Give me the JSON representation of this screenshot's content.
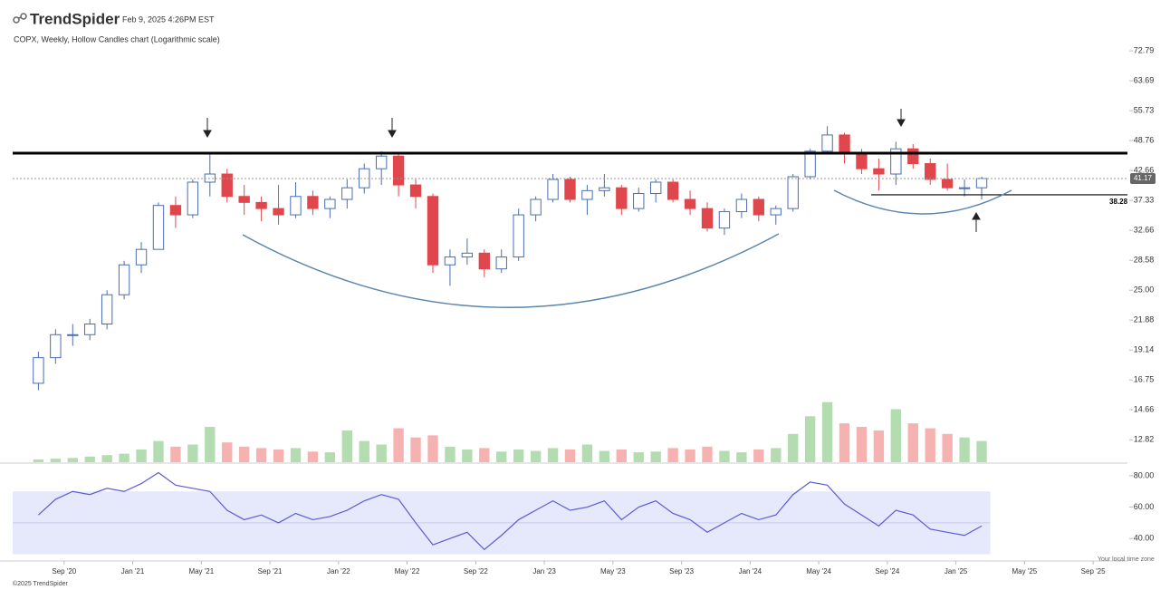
{
  "header": {
    "brand": "TrendSpider",
    "timestamp": "Feb 9, 2025 4:26PM EST"
  },
  "chart_data": {
    "type": "candlestick",
    "title": "COPX, Weekly, Hollow Candles chart (Logarithmic scale)",
    "x": [
      "2020-07",
      "2020-08",
      "2020-09",
      "2020-10",
      "2020-11",
      "2020-12",
      "2021-01",
      "2021-02",
      "2021-03",
      "2021-04",
      "2021-05",
      "2021-06",
      "2021-07",
      "2021-08",
      "2021-09",
      "2021-10",
      "2021-11",
      "2021-12",
      "2022-01",
      "2022-02",
      "2022-03",
      "2022-04",
      "2022-05",
      "2022-06",
      "2022-07",
      "2022-08",
      "2022-09",
      "2022-10",
      "2022-11",
      "2022-12",
      "2023-01",
      "2023-02",
      "2023-03",
      "2023-04",
      "2023-05",
      "2023-06",
      "2023-07",
      "2023-08",
      "2023-09",
      "2023-10",
      "2023-11",
      "2023-12",
      "2024-01",
      "2024-02",
      "2024-03",
      "2024-04",
      "2024-05",
      "2024-06",
      "2024-07",
      "2024-08",
      "2024-09",
      "2024-10",
      "2024-11",
      "2024-12",
      "2025-01",
      "2025-02"
    ],
    "open": [
      16.5,
      18.5,
      20.5,
      20.5,
      21.5,
      24.5,
      28,
      30,
      36.5,
      35,
      40.5,
      42,
      38,
      37,
      36,
      35,
      38,
      36,
      37.5,
      39.5,
      43,
      45.5,
      40,
      38,
      28,
      29,
      29.5,
      27.5,
      29,
      35,
      37.5,
      41,
      37.5,
      39,
      39.5,
      36,
      38.5,
      40.5,
      37.5,
      36,
      33,
      35.5,
      37.5,
      35,
      36,
      41.5,
      46.5,
      50,
      46,
      43,
      42,
      47,
      44,
      41,
      39.5,
      39.5
    ],
    "high": [
      19,
      21,
      21.5,
      22,
      25,
      28.5,
      31,
      37,
      38,
      41,
      46,
      43,
      40,
      38,
      40,
      40.5,
      39,
      38,
      41,
      44,
      46.5,
      46,
      41,
      38.5,
      30,
      31.5,
      30,
      30,
      36,
      38,
      42,
      41.5,
      40,
      42,
      40,
      39.5,
      41,
      41,
      39,
      37,
      36,
      38.5,
      38,
      36.5,
      42,
      47,
      52,
      50.5,
      47,
      45,
      48.5,
      48,
      45,
      44,
      41,
      41.5
    ],
    "low": [
      16,
      18,
      19.5,
      20,
      21,
      24,
      27,
      30,
      33,
      34.5,
      38,
      37,
      35,
      34,
      33.5,
      34.5,
      35,
      34.5,
      36,
      38.5,
      40,
      38,
      36,
      27,
      25.5,
      28,
      26.5,
      27,
      28.5,
      34,
      37,
      37,
      35,
      38,
      35,
      35.5,
      37,
      37,
      35,
      32.5,
      32,
      34.5,
      34,
      33.5,
      35.5,
      41,
      46,
      44,
      42,
      39,
      40,
      43,
      40,
      39,
      38,
      37.5
    ],
    "close": [
      18.5,
      20.5,
      20.5,
      21.5,
      24.5,
      28,
      30,
      36.5,
      35,
      40.5,
      42,
      38,
      37,
      36,
      35,
      38,
      36,
      37.5,
      39.5,
      43,
      45.5,
      40,
      38,
      28,
      29,
      29.5,
      27.5,
      29,
      35,
      37.5,
      41,
      37.5,
      39,
      39.5,
      36,
      38.5,
      40.5,
      37.5,
      36,
      33,
      35.5,
      37.5,
      35,
      36,
      41.5,
      46.5,
      50,
      46,
      43,
      42,
      47,
      44,
      41,
      39.5,
      39.5,
      41.17
    ],
    "volume": [
      4,
      5,
      6,
      8,
      10,
      12,
      18,
      30,
      22,
      25,
      50,
      28,
      22,
      20,
      18,
      20,
      15,
      14,
      45,
      30,
      25,
      48,
      35,
      38,
      22,
      18,
      20,
      15,
      18,
      16,
      20,
      18,
      25,
      16,
      18,
      14,
      15,
      20,
      18,
      22,
      16,
      14,
      18,
      20,
      40,
      65,
      85,
      55,
      50,
      45,
      75,
      55,
      48,
      40,
      35,
      30
    ],
    "rsi": [
      55,
      65,
      70,
      68,
      72,
      70,
      75,
      82,
      74,
      72,
      70,
      58,
      52,
      55,
      50,
      56,
      52,
      54,
      58,
      64,
      68,
      65,
      50,
      36,
      40,
      44,
      33,
      42,
      52,
      58,
      64,
      58,
      60,
      64,
      52,
      60,
      64,
      56,
      52,
      44,
      50,
      56,
      52,
      55,
      68,
      76,
      74,
      62,
      55,
      48,
      58,
      55,
      46,
      44,
      42,
      48
    ],
    "xlim": [
      "2020-06",
      "2025-11"
    ],
    "xticks": [
      {
        "value": "2020-09",
        "label": "Sep '20"
      },
      {
        "value": "2021-01",
        "label": "Jan '21"
      },
      {
        "value": "2021-05",
        "label": "May '21"
      },
      {
        "value": "2021-09",
        "label": "Sep '21"
      },
      {
        "value": "2022-01",
        "label": "Jan '22"
      },
      {
        "value": "2022-05",
        "label": "May '22"
      },
      {
        "value": "2022-09",
        "label": "Sep '22"
      },
      {
        "value": "2023-01",
        "label": "Jan '23"
      },
      {
        "value": "2023-05",
        "label": "May '23"
      },
      {
        "value": "2023-09",
        "label": "Sep '23"
      },
      {
        "value": "2024-01",
        "label": "Jan '24"
      },
      {
        "value": "2024-05",
        "label": "May '24"
      },
      {
        "value": "2024-09",
        "label": "Sep '24"
      },
      {
        "value": "2025-01",
        "label": "Jan '25"
      },
      {
        "value": "2025-05",
        "label": "May '25"
      },
      {
        "value": "2025-09",
        "label": "Sep '25"
      }
    ],
    "log_scale": true,
    "ylim": [
      11.6,
      80.9
    ],
    "yticks": [
      12.82,
      14.66,
      16.75,
      19.14,
      21.88,
      {
        "value": 25,
        "label": "25.00"
      },
      28.58,
      32.66,
      37.33,
      42.66,
      48.76,
      55.73,
      63.69,
      72.79
    ],
    "up_color": "#4a6db3",
    "down_color": "#e0474c",
    "volume_lim": [
      0,
      100
    ],
    "volume_up_color": "#b3dcb0",
    "volume_down_color": "#f5b2b0",
    "rsi_ylim": [
      28,
      84
    ],
    "rsi_yticks": [
      {
        "value": 40,
        "label": "40.00"
      },
      {
        "value": 60,
        "label": "60.00"
      },
      {
        "value": 80,
        "label": "80.00"
      }
    ],
    "rsi_band": [
      30,
      70
    ],
    "rsi_color": "#5b5bd6",
    "resistance": 46.1,
    "support": 38.28
  },
  "footer": {
    "copyright": "©2025 TrendSpider",
    "timezone": "Your local time zone"
  }
}
